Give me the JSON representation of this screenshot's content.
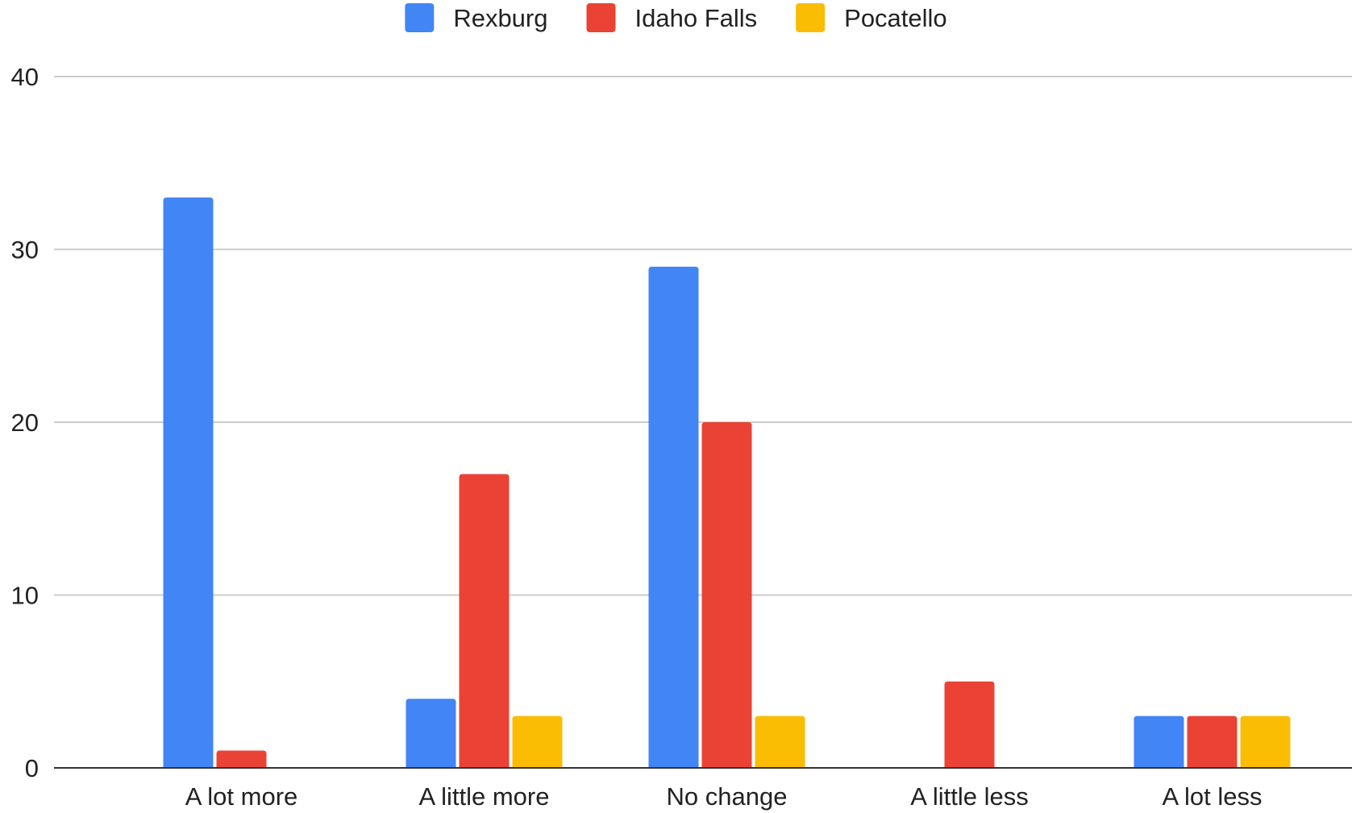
{
  "chart_data": {
    "type": "bar",
    "title": "",
    "xlabel": "",
    "ylabel": "",
    "categories": [
      "A lot more",
      "A little more",
      "No change",
      "A little less",
      "A lot less"
    ],
    "series": [
      {
        "name": "Rexburg",
        "color": "#4285f4",
        "values": [
          33,
          4,
          29,
          0,
          3
        ]
      },
      {
        "name": "Idaho Falls",
        "color": "#ea4335",
        "values": [
          1,
          17,
          20,
          5,
          3
        ]
      },
      {
        "name": "Pocatello",
        "color": "#fbbc04",
        "values": [
          0,
          3,
          3,
          0,
          3
        ]
      }
    ],
    "ylim": [
      0,
      40
    ],
    "yticks": [
      0,
      10,
      20,
      30,
      40
    ],
    "grid": true,
    "legend_position": "top"
  }
}
